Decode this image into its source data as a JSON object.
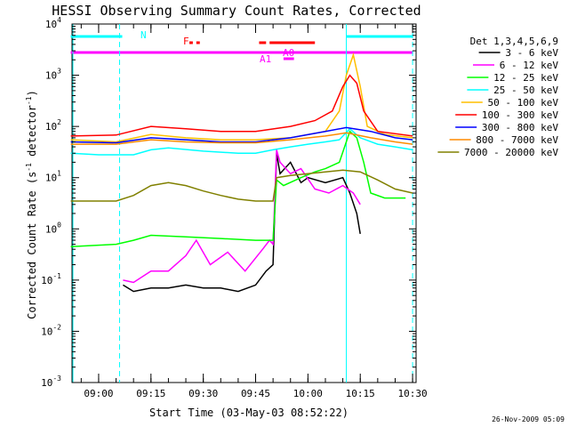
{
  "chart_data": {
    "type": "line",
    "title": "HESSI Observing Summary Count Rates, Corrected",
    "xlabel": "Start Time (03-May-03 08:52:22)",
    "ylabel": "Corrected Count Rate (s⁻¹ detector⁻¹)",
    "ylabel_parts": {
      "base": "Corrected Count Rate (s",
      "sup1": "-1",
      "mid": " detector",
      "sup2": "-1",
      "end": ")"
    },
    "yscale": "log",
    "xlim": [
      "08:52:22",
      "10:31:00"
    ],
    "ylim": [
      0.001,
      10000
    ],
    "x_ticks": [
      "09:00",
      "09:15",
      "09:30",
      "09:45",
      "10:00",
      "10:15",
      "10:30"
    ],
    "y_ticks": [
      {
        "value": 0.001,
        "base": "10",
        "exp": "-3"
      },
      {
        "value": 0.01,
        "base": "10",
        "exp": "-2"
      },
      {
        "value": 0.1,
        "base": "10",
        "exp": "-1"
      },
      {
        "value": 1,
        "base": "10",
        "exp": "0"
      },
      {
        "value": 10,
        "base": "10",
        "exp": "1"
      },
      {
        "value": 100,
        "base": "10",
        "exp": "2"
      },
      {
        "value": 1000,
        "base": "10",
        "exp": "3"
      },
      {
        "value": 10000,
        "base": "10",
        "exp": "4"
      }
    ],
    "legend": {
      "position": "right",
      "header": "Det 1,3,4,5,6,9"
    },
    "series": [
      {
        "name": "3 - 6 keV",
        "color": "#000000",
        "points": [
          [
            "09:07",
            0.08
          ],
          [
            "09:10",
            0.06
          ],
          [
            "09:15",
            0.07
          ],
          [
            "09:20",
            0.07
          ],
          [
            "09:25",
            0.08
          ],
          [
            "09:30",
            0.07
          ],
          [
            "09:35",
            0.07
          ],
          [
            "09:40",
            0.06
          ],
          [
            "09:45",
            0.08
          ],
          [
            "09:48",
            0.15
          ],
          [
            "09:50",
            0.2
          ],
          [
            "09:51",
            30
          ],
          [
            "09:52",
            12
          ],
          [
            "09:55",
            20
          ],
          [
            "09:58",
            8
          ],
          [
            "10:00",
            10
          ],
          [
            "10:05",
            8
          ],
          [
            "10:10",
            10
          ],
          [
            "10:12",
            5
          ],
          [
            "10:14",
            2
          ],
          [
            "10:15",
            0.8
          ]
        ]
      },
      {
        "name": "6 - 12 keV",
        "color": "#ff00ff",
        "points": [
          [
            "09:07",
            0.1
          ],
          [
            "09:10",
            0.09
          ],
          [
            "09:15",
            0.15
          ],
          [
            "09:20",
            0.15
          ],
          [
            "09:25",
            0.3
          ],
          [
            "09:28",
            0.6
          ],
          [
            "09:32",
            0.2
          ],
          [
            "09:37",
            0.35
          ],
          [
            "09:42",
            0.15
          ],
          [
            "09:47",
            0.4
          ],
          [
            "09:49",
            0.6
          ],
          [
            "09:50",
            0.5
          ],
          [
            "09:51",
            35
          ],
          [
            "09:52",
            20
          ],
          [
            "09:55",
            12
          ],
          [
            "09:58",
            15
          ],
          [
            "10:02",
            6
          ],
          [
            "10:06",
            5
          ],
          [
            "10:10",
            7
          ],
          [
            "10:13",
            5
          ],
          [
            "10:15",
            3
          ]
        ]
      },
      {
        "name": "12 - 25 keV",
        "color": "#00ff00",
        "points": [
          [
            "08:52",
            0.45
          ],
          [
            "09:05",
            0.5
          ],
          [
            "09:10",
            0.6
          ],
          [
            "09:15",
            0.75
          ],
          [
            "09:25",
            0.7
          ],
          [
            "09:35",
            0.65
          ],
          [
            "09:45",
            0.6
          ],
          [
            "09:50",
            0.6
          ],
          [
            "09:51",
            9
          ],
          [
            "09:53",
            7
          ],
          [
            "09:58",
            10
          ],
          [
            "10:02",
            13
          ],
          [
            "10:05",
            15
          ],
          [
            "10:09",
            20
          ],
          [
            "10:12",
            80
          ],
          [
            "10:14",
            60
          ],
          [
            "10:16",
            20
          ],
          [
            "10:18",
            5
          ],
          [
            "10:22",
            4
          ],
          [
            "10:28",
            4
          ]
        ]
      },
      {
        "name": "25 - 50 keV",
        "color": "#00ffff",
        "points": [
          [
            "08:52",
            30
          ],
          [
            "09:00",
            28
          ],
          [
            "09:10",
            28
          ],
          [
            "09:15",
            35
          ],
          [
            "09:20",
            38
          ],
          [
            "09:30",
            33
          ],
          [
            "09:40",
            30
          ],
          [
            "09:45",
            30
          ],
          [
            "09:50",
            35
          ],
          [
            "09:55",
            40
          ],
          [
            "10:00",
            45
          ],
          [
            "10:05",
            50
          ],
          [
            "10:09",
            55
          ],
          [
            "10:12",
            90
          ],
          [
            "10:15",
            60
          ],
          [
            "10:20",
            45
          ],
          [
            "10:25",
            40
          ],
          [
            "10:30",
            35
          ]
        ]
      },
      {
        "name": "50 - 100 keV",
        "color": "#ffbf00",
        "points": [
          [
            "08:52",
            55
          ],
          [
            "09:05",
            50
          ],
          [
            "09:15",
            70
          ],
          [
            "09:25",
            60
          ],
          [
            "09:35",
            55
          ],
          [
            "09:45",
            55
          ],
          [
            "09:55",
            60
          ],
          [
            "10:05",
            80
          ],
          [
            "10:09",
            200
          ],
          [
            "10:11",
            1000
          ],
          [
            "10:13",
            2500
          ],
          [
            "10:15",
            600
          ],
          [
            "10:17",
            100
          ],
          [
            "10:22",
            70
          ],
          [
            "10:30",
            60
          ]
        ]
      },
      {
        "name": "100 - 300 keV",
        "color": "#ff0000",
        "points": [
          [
            "08:52",
            65
          ],
          [
            "09:05",
            68
          ],
          [
            "09:15",
            100
          ],
          [
            "09:25",
            90
          ],
          [
            "09:35",
            80
          ],
          [
            "09:45",
            80
          ],
          [
            "09:55",
            100
          ],
          [
            "10:02",
            130
          ],
          [
            "10:07",
            200
          ],
          [
            "10:10",
            600
          ],
          [
            "10:12",
            1000
          ],
          [
            "10:14",
            700
          ],
          [
            "10:16",
            200
          ],
          [
            "10:20",
            80
          ],
          [
            "10:30",
            65
          ]
        ]
      },
      {
        "name": "300 - 800 keV",
        "color": "#0000ff",
        "points": [
          [
            "08:52",
            50
          ],
          [
            "09:05",
            48
          ],
          [
            "09:15",
            60
          ],
          [
            "09:25",
            55
          ],
          [
            "09:35",
            50
          ],
          [
            "09:45",
            50
          ],
          [
            "09:55",
            60
          ],
          [
            "10:05",
            80
          ],
          [
            "10:11",
            95
          ],
          [
            "10:18",
            80
          ],
          [
            "10:25",
            60
          ],
          [
            "10:30",
            55
          ]
        ]
      },
      {
        "name": "800 - 7000 keV",
        "color": "#ff8c00",
        "points": [
          [
            "08:52",
            45
          ],
          [
            "09:05",
            45
          ],
          [
            "09:15",
            55
          ],
          [
            "09:25",
            50
          ],
          [
            "09:35",
            48
          ],
          [
            "09:45",
            48
          ],
          [
            "09:55",
            55
          ],
          [
            "10:05",
            65
          ],
          [
            "10:11",
            75
          ],
          [
            "10:18",
            60
          ],
          [
            "10:25",
            50
          ],
          [
            "10:30",
            45
          ]
        ]
      },
      {
        "name": "7000 - 20000 keV",
        "color": "#808000",
        "points": [
          [
            "08:52",
            3.5
          ],
          [
            "09:05",
            3.5
          ],
          [
            "09:10",
            4.5
          ],
          [
            "09:15",
            7
          ],
          [
            "09:20",
            8
          ],
          [
            "09:25",
            7
          ],
          [
            "09:30",
            5.5
          ],
          [
            "09:35",
            4.5
          ],
          [
            "09:40",
            3.8
          ],
          [
            "09:45",
            3.5
          ],
          [
            "09:50",
            3.5
          ],
          [
            "09:51",
            10
          ],
          [
            "09:55",
            11
          ],
          [
            "10:00",
            12
          ],
          [
            "10:05",
            13
          ],
          [
            "10:10",
            14
          ],
          [
            "10:15",
            13
          ],
          [
            "10:20",
            9
          ],
          [
            "10:25",
            6
          ],
          [
            "10:30",
            5
          ]
        ]
      }
    ],
    "flag_bars": [
      {
        "label": "N",
        "color": "#00ffff",
        "segments": [
          [
            "08:52",
            "09:06"
          ],
          [
            "09:06",
            "09:06"
          ],
          [
            "10:11",
            "10:30"
          ]
        ]
      },
      {
        "label": "F",
        "color": "#ff0000",
        "segments": [
          [
            "09:26",
            "09:27"
          ],
          [
            "09:28",
            "09:29"
          ],
          [
            "09:46",
            "09:48"
          ],
          [
            "09:49",
            "10:02"
          ]
        ]
      },
      {
        "label": "A0",
        "color": "#ff00ff",
        "segments": [
          [
            "08:52",
            "10:30"
          ]
        ]
      },
      {
        "label": "A1",
        "color": "#ff00ff",
        "segments": [
          [
            "09:53",
            "09:56"
          ]
        ]
      }
    ],
    "annotations": {
      "footer_date": "26-Nov-2009 05:09"
    }
  }
}
